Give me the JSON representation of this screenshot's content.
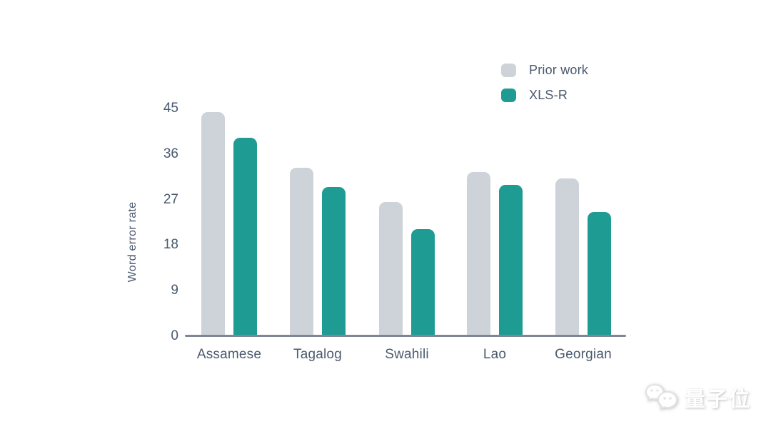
{
  "colors": {
    "prior_work_bar": "#cdd3d8",
    "xls_r_bar": "#1e9c94",
    "axis_text": "#4a5a6e",
    "axis_line": "#7e8695",
    "background": "#ffffff"
  },
  "chart_data": {
    "type": "bar",
    "title": "",
    "xlabel": "",
    "ylabel": "Word error rate",
    "categories": [
      "Assamese",
      "Tagalog",
      "Swahili",
      "Lao",
      "Georgian"
    ],
    "series": [
      {
        "name": "Prior work",
        "values": [
          44.3,
          33.3,
          26.5,
          32.5,
          31.2
        ]
      },
      {
        "name": "XLS-R",
        "values": [
          39.2,
          29.5,
          21.2,
          29.9,
          24.6
        ]
      }
    ],
    "yticks": [
      0,
      9,
      18,
      27,
      36,
      45
    ],
    "ylim": [
      0,
      45
    ],
    "grid": false,
    "legend_position": "top-right"
  },
  "watermark": {
    "text": "量子位"
  }
}
